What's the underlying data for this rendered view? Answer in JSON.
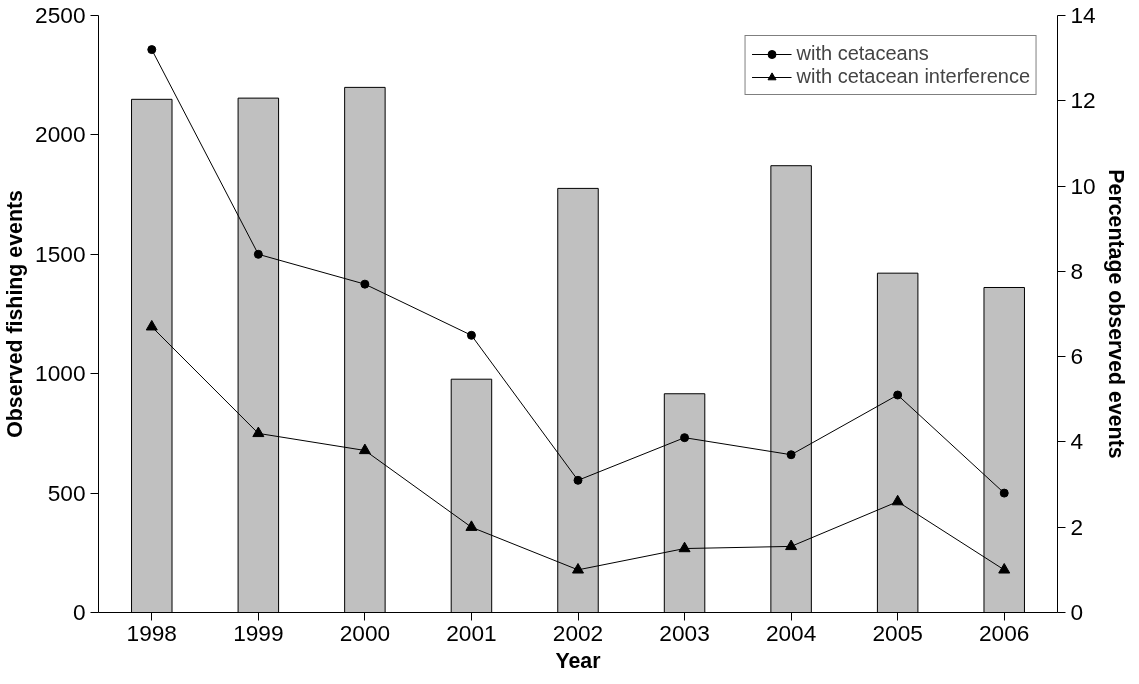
{
  "chart_data": {
    "type": "bar",
    "xlabel": "Year",
    "ylabel": "Observed fishing events",
    "y2label": "Percentage observed events",
    "categories": [
      "1998",
      "1999",
      "2000",
      "2001",
      "2002",
      "2003",
      "2004",
      "2005",
      "2006"
    ],
    "series": [
      {
        "color": "#c0c0c0",
        "values": [
          2149,
          2154,
          2199,
          977,
          1776,
          916,
          1871,
          1421,
          1361
        ]
      },
      {
        "type": "line",
        "name": "with cetaceans",
        "color": "#000000",
        "axis": "y2",
        "marker": "circle",
        "values": [
          13.2,
          8.4,
          7.7,
          6.5,
          3.1,
          4.1,
          3.7,
          5.1,
          2.8
        ]
      },
      {
        "type": "line",
        "name": "with cetacean interference",
        "color": "#000000",
        "axis": "y2",
        "marker": "triangle",
        "values": [
          6.7,
          4.2,
          3.8,
          2.0,
          1.0,
          1.5,
          1.55,
          2.6,
          1.0
        ]
      }
    ],
    "ylim": [
      0,
      2500
    ],
    "yticks": [
      0,
      500,
      1000,
      1500,
      2000,
      2500
    ],
    "y2lim": [
      0,
      14
    ],
    "y2ticks": [
      0,
      2,
      4,
      6,
      8,
      10,
      12,
      14
    ],
    "legend": "top right",
    "grid": false,
    "line_style": "solid"
  }
}
